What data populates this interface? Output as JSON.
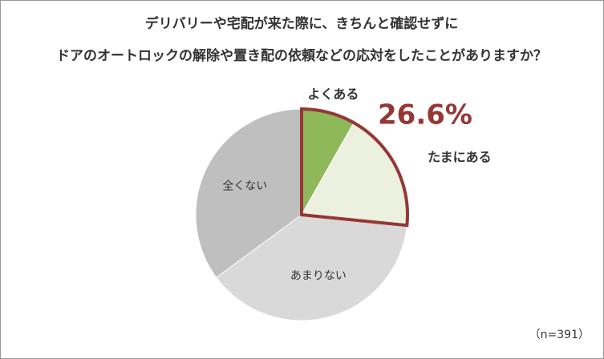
{
  "chart_data": {
    "type": "pie",
    "title": [
      "デリバリーや宅配が来た際に、きちんと確認せずに",
      "ドアのオートロックの解除や置き配の依頼などの応対をしたことがありますか？"
    ],
    "categories": [
      "よくある",
      "たまにある",
      "あまりない",
      "全くない"
    ],
    "values": [
      8.2,
      18.4,
      38.3,
      35.1
    ],
    "colors": [
      "#8fb85b",
      "#ebf1de",
      "#d9d9d9",
      "#bfbfbf"
    ],
    "annotation": "26.6%",
    "note": "（n=391）"
  }
}
